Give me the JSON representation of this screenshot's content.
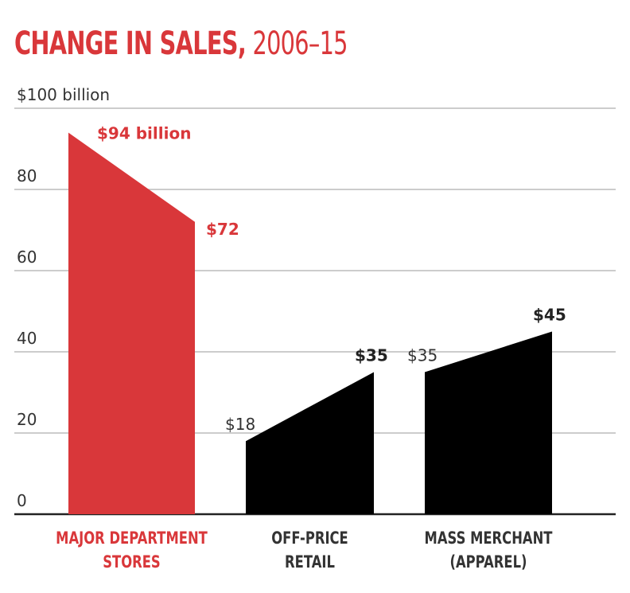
{
  "chart_data": {
    "type": "area",
    "title": "CHANGE IN SALES,",
    "title_years": "2006–15",
    "ylabel_top": "$100 billion",
    "ylim": [
      0,
      100
    ],
    "yticks": [
      0,
      20,
      40,
      60,
      80,
      100
    ],
    "ytick_labels": [
      "0",
      "20",
      "40",
      "60",
      "80",
      "$100 billion"
    ],
    "grid": true,
    "x": [
      "2006",
      "2015"
    ],
    "series": [
      {
        "name": "MAJOR DEPARTMENT STORES",
        "label_lines": [
          "MAJOR DEPARTMENT",
          "STORES"
        ],
        "values": [
          94,
          72
        ],
        "value_labels": [
          "$94 billion",
          "$72"
        ],
        "color": "#d9373a",
        "start_bold": true
      },
      {
        "name": "OFF-PRICE RETAIL",
        "label_lines": [
          "OFF-PRICE",
          "RETAIL"
        ],
        "values": [
          18,
          35
        ],
        "value_labels": [
          "$18",
          "$35"
        ],
        "color": "#000000",
        "start_bold": false
      },
      {
        "name": "MASS MERCHANT (APPAREL)",
        "label_lines": [
          "MASS MERCHANT",
          "(APPAREL)"
        ],
        "values": [
          35,
          45
        ],
        "value_labels": [
          "$35",
          "$45"
        ],
        "color": "#000000",
        "start_bold": false
      }
    ]
  },
  "colors": {
    "accent": "#d9373a",
    "text": "#333333",
    "grid": "#bbbbbb"
  }
}
